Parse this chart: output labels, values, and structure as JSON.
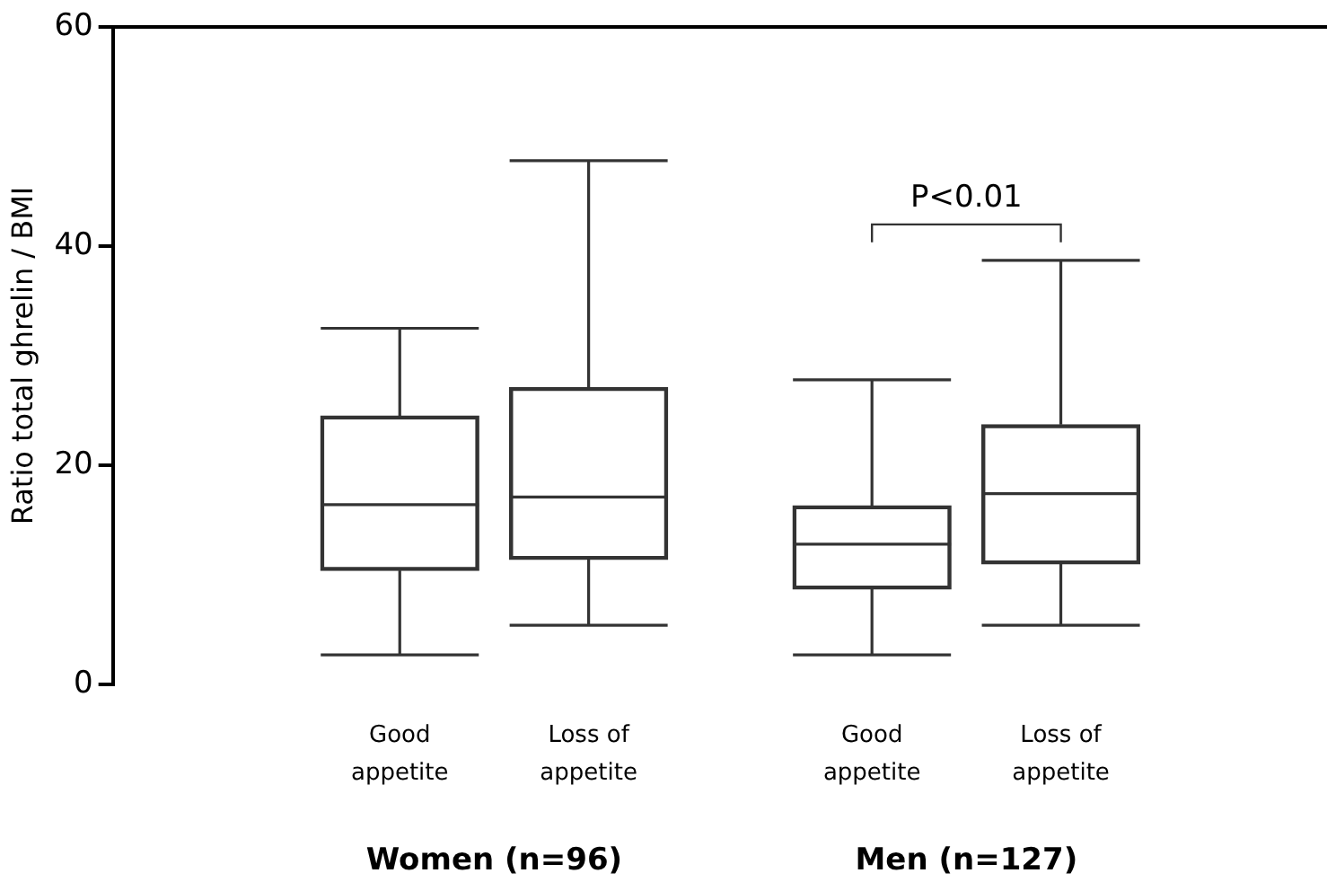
{
  "chart_data": {
    "type": "box",
    "ylabel": "Ratio total ghrelin / BMI",
    "categories": [
      "Good appetite",
      "Loss of appetite",
      "Good appetite",
      "Loss of appetite"
    ],
    "series": [
      {
        "color": "#333333",
        "boxes": [
          {
            "low": 2.7,
            "q1": 10.4,
            "median": 16.4,
            "q3": 24.5,
            "high": 32.5
          },
          {
            "low": 5.4,
            "q1": 11.4,
            "median": 17.1,
            "q3": 27.1,
            "high": 47.8
          },
          {
            "low": 2.7,
            "q1": 8.7,
            "median": 12.8,
            "q3": 16.3,
            "high": 27.8
          },
          {
            "low": 5.4,
            "q1": 11.0,
            "median": 17.4,
            "q3": 23.7,
            "high": 38.7
          }
        ]
      }
    ],
    "ylim": [
      0,
      60
    ],
    "yticks": [
      0,
      20,
      40,
      60
    ],
    "grid": false,
    "legend": false,
    "annotations": [
      "Women (n=96)",
      "Men (n=127)",
      "P<0.01"
    ]
  }
}
